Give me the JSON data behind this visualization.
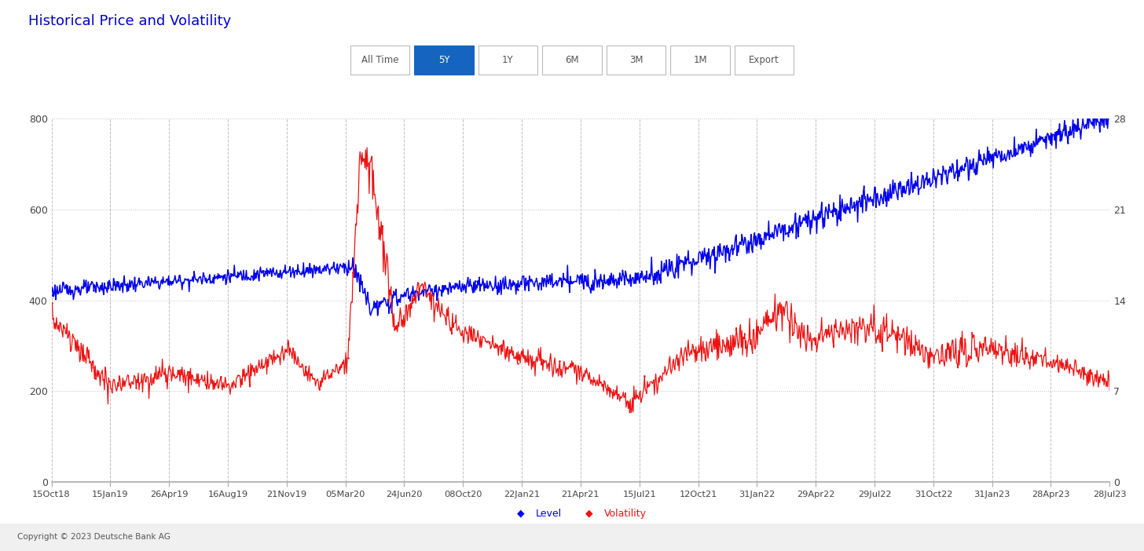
{
  "title": "Historical Price and Volatility",
  "title_color": "#0000cc",
  "title_fontsize": 13,
  "left_ylim": [
    0,
    800
  ],
  "right_ylim": [
    0,
    28
  ],
  "left_yticks": [
    0,
    200,
    400,
    600,
    800
  ],
  "right_yticks": [
    0,
    7,
    14,
    21,
    28
  ],
  "xtick_labels": [
    "15Oct18",
    "15Jan19",
    "26Apr19",
    "16Aug19",
    "21Nov19",
    "05Mar20",
    "24Jun20",
    "08Oct20",
    "22Jan21",
    "21Apr21",
    "15Jul21",
    "12Oct21",
    "31Jan22",
    "29Apr22",
    "29Jul22",
    "31Oct22",
    "31Jan23",
    "28Apr23",
    "28Jul23"
  ],
  "background_color": "#ffffff",
  "chart_bg": "#ffffff",
  "grid_color": "#c0c0c0",
  "blue_color": "#0000ee",
  "red_color": "#ee1111",
  "legend_level_color": "#0000ee",
  "legend_vol_color": "#ee1111",
  "button_labels": [
    "All Time",
    "5Y",
    "1Y",
    "6M",
    "3M",
    "1M",
    "Export"
  ],
  "active_button": "5Y",
  "copyright": "Copyright © 2023 Deutsche Bank AG",
  "linewidth_blue": 1.1,
  "linewidth_red": 0.9,
  "n_points": 1500
}
